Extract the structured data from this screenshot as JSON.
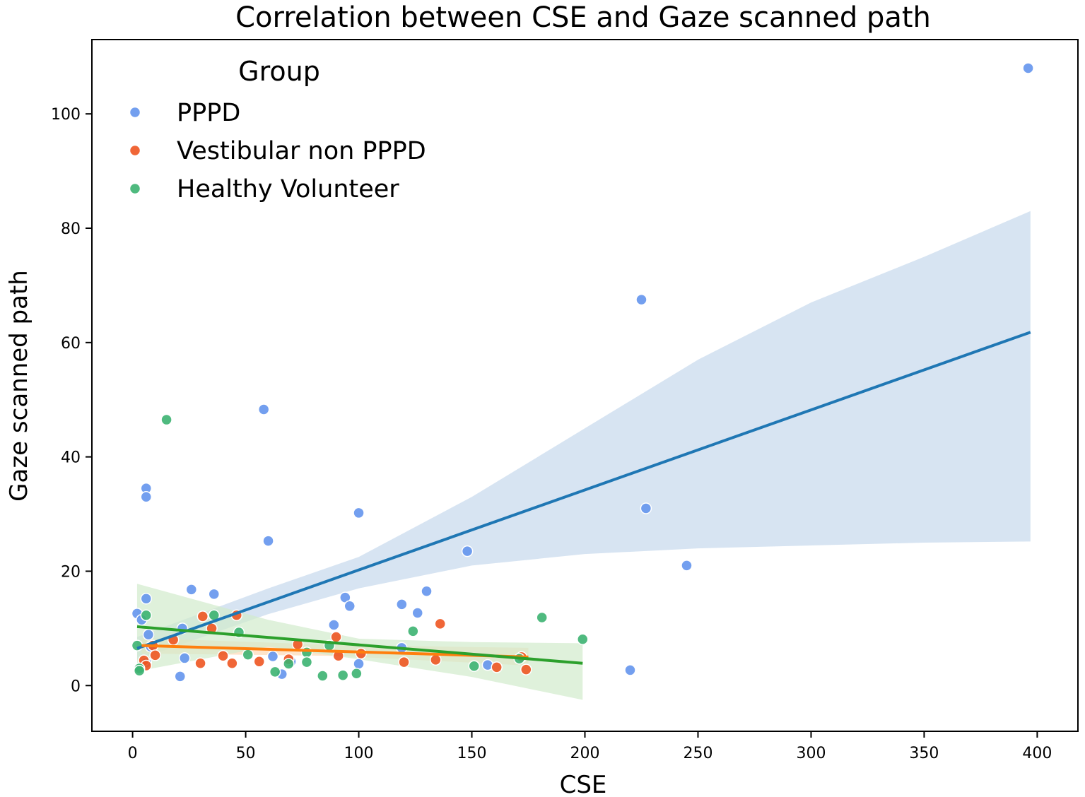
{
  "chart_data": {
    "type": "scatter",
    "title": "Correlation between CSE and Gaze scanned path",
    "xlabel": "CSE",
    "ylabel": "Gaze scanned path",
    "xlim": [
      -18,
      418
    ],
    "ylim": [
      -8,
      113
    ],
    "xticks": [
      0,
      50,
      100,
      150,
      200,
      250,
      300,
      350,
      400
    ],
    "yticks": [
      0,
      20,
      40,
      60,
      80,
      100
    ],
    "grid": false,
    "legend": {
      "title": "Group",
      "placement": "top-left"
    },
    "series": [
      {
        "name": "PPPD",
        "color": "#6495ed",
        "line_color": "#1f77b4",
        "band_color": "#c6d9ec",
        "points": [
          [
            396,
            108
          ],
          [
            225,
            67.5
          ],
          [
            227,
            31
          ],
          [
            245,
            21
          ],
          [
            220,
            2.7
          ],
          [
            58,
            48.3
          ],
          [
            6,
            34.5
          ],
          [
            6,
            33
          ],
          [
            100,
            30.2
          ],
          [
            60,
            25.3
          ],
          [
            148,
            23.5
          ],
          [
            26,
            16.8
          ],
          [
            36,
            16
          ],
          [
            130,
            16.5
          ],
          [
            94,
            15.4
          ],
          [
            6,
            15.2
          ],
          [
            96,
            13.9
          ],
          [
            119,
            14.2
          ],
          [
            126,
            12.7
          ],
          [
            2,
            12.6
          ],
          [
            4,
            11.5
          ],
          [
            89,
            10.6
          ],
          [
            22,
            10
          ],
          [
            7,
            8.9
          ],
          [
            8,
            6.8
          ],
          [
            23,
            4.8
          ],
          [
            62,
            5.1
          ],
          [
            100,
            3.8
          ],
          [
            157,
            3.6
          ],
          [
            6,
            4
          ],
          [
            66,
            2
          ],
          [
            21,
            1.6
          ],
          [
            119,
            6.6
          ],
          [
            70,
            4.2
          ]
        ],
        "fit": {
          "x": [
            2,
            397
          ],
          "y": [
            6.5,
            61.8
          ]
        },
        "ci_upper": [
          [
            2,
            8.5
          ],
          [
            60,
            17
          ],
          [
            100,
            22.5
          ],
          [
            150,
            33
          ],
          [
            200,
            45
          ],
          [
            250,
            57
          ],
          [
            300,
            67
          ],
          [
            350,
            75
          ],
          [
            397,
            83
          ]
        ],
        "ci_lower": [
          [
            2,
            4.5
          ],
          [
            60,
            12.5
          ],
          [
            100,
            17
          ],
          [
            150,
            21
          ],
          [
            200,
            23
          ],
          [
            250,
            24
          ],
          [
            300,
            24.5
          ],
          [
            350,
            25
          ],
          [
            397,
            25.2
          ]
        ]
      },
      {
        "name": "Vestibular non PPPD",
        "color": "#ee5521",
        "line_color": "#ff7f0e",
        "band_color": "#fdd9b5",
        "points": [
          [
            136,
            10.8
          ],
          [
            31,
            12.1
          ],
          [
            46,
            12.3
          ],
          [
            35,
            10
          ],
          [
            90,
            8.5
          ],
          [
            18,
            8
          ],
          [
            73,
            7.2
          ],
          [
            9,
            7
          ],
          [
            10,
            5.3
          ],
          [
            40,
            5.2
          ],
          [
            91,
            5.2
          ],
          [
            101,
            5.6
          ],
          [
            5,
            4.4
          ],
          [
            69,
            4.6
          ],
          [
            30,
            3.9
          ],
          [
            44,
            3.9
          ],
          [
            56,
            4.2
          ],
          [
            120,
            4.1
          ],
          [
            134,
            4.5
          ],
          [
            172,
            5
          ],
          [
            161,
            3.2
          ],
          [
            174,
            2.8
          ],
          [
            6,
            3.5
          ]
        ],
        "fit": {
          "x": [
            4,
            175
          ],
          "y": [
            7,
            5
          ]
        },
        "ci_upper": [
          [
            4,
            8.3
          ],
          [
            90,
            7.1
          ],
          [
            175,
            6.6
          ]
        ],
        "ci_lower": [
          [
            4,
            5.6
          ],
          [
            90,
            5.2
          ],
          [
            175,
            3.5
          ]
        ]
      },
      {
        "name": "Healthy Volunteer",
        "color": "#3cb371",
        "line_color": "#2ca02c",
        "band_color": "#d2ebcc",
        "points": [
          [
            15,
            46.5
          ],
          [
            6,
            12.3
          ],
          [
            36,
            12.3
          ],
          [
            47,
            9.3
          ],
          [
            181,
            11.9
          ],
          [
            124,
            9.5
          ],
          [
            199,
            8.1
          ],
          [
            2,
            7
          ],
          [
            87,
            7
          ],
          [
            77,
            5.8
          ],
          [
            51,
            5.4
          ],
          [
            3,
            3
          ],
          [
            3,
            2.6
          ],
          [
            63,
            2.4
          ],
          [
            69,
            3.8
          ],
          [
            77,
            4.1
          ],
          [
            84,
            1.7
          ],
          [
            93,
            1.8
          ],
          [
            99,
            2.1
          ],
          [
            151,
            3.4
          ],
          [
            171,
            4.7
          ]
        ],
        "fit": {
          "x": [
            2,
            199
          ],
          "y": [
            10.3,
            3.9
          ]
        },
        "ci_upper": [
          [
            2,
            17.8
          ],
          [
            60,
            11.5
          ],
          [
            100,
            8.2
          ],
          [
            150,
            7.6
          ],
          [
            199,
            7.4
          ]
        ],
        "ci_lower": [
          [
            2,
            2.5
          ],
          [
            60,
            6.8
          ],
          [
            100,
            4.6
          ],
          [
            150,
            1.5
          ],
          [
            199,
            -2.5
          ]
        ]
      }
    ]
  }
}
